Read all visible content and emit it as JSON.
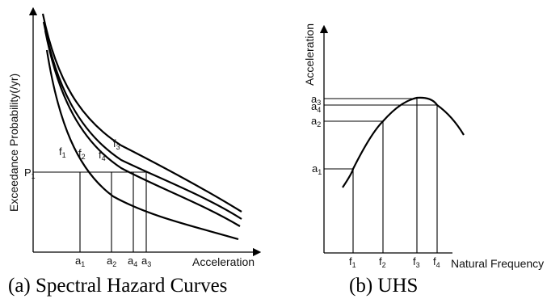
{
  "panel_a": {
    "y_axis_label": "Exceedance Probability(/yr)",
    "x_axis_label": "Acceleration",
    "probability_label": {
      "main": "P",
      "sub": "1"
    },
    "curve_labels": [
      {
        "main": "f",
        "sub": "1"
      },
      {
        "main": "f",
        "sub": "2"
      },
      {
        "main": "f",
        "sub": "4"
      },
      {
        "main": "f",
        "sub": "3"
      }
    ],
    "x_ticks": [
      {
        "main": "a",
        "sub": "1"
      },
      {
        "main": "a",
        "sub": "2"
      },
      {
        "main": "a",
        "sub": "4"
      },
      {
        "main": "a",
        "sub": "3"
      }
    ],
    "caption": "(a) Spectral Hazard Curves"
  },
  "panel_b": {
    "y_axis_label": "Acceleration",
    "x_axis_label": "Natural Frequency",
    "y_ticks": [
      {
        "main": "a",
        "sub": "3"
      },
      {
        "main": "a",
        "sub": "4"
      },
      {
        "main": "a",
        "sub": "2"
      },
      {
        "main": "a",
        "sub": "1"
      }
    ],
    "x_ticks": [
      {
        "main": "f",
        "sub": "1"
      },
      {
        "main": "f",
        "sub": "2"
      },
      {
        "main": "f",
        "sub": "3"
      },
      {
        "main": "f",
        "sub": "4"
      }
    ],
    "caption": "(b) UHS"
  }
}
